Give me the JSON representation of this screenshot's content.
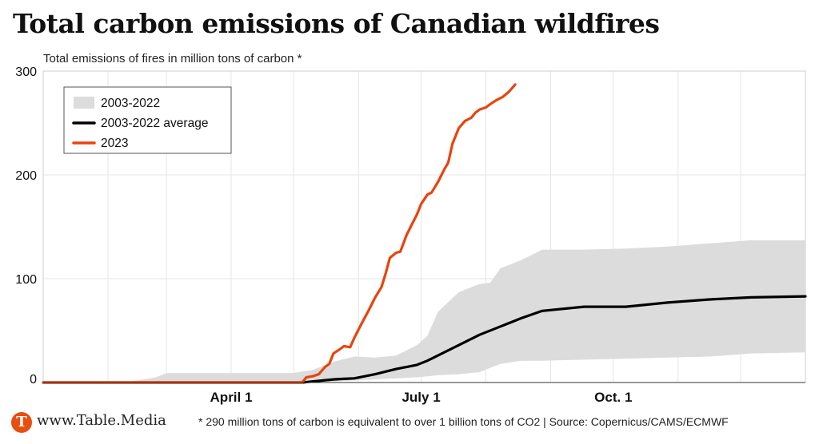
{
  "title": "Total carbon emissions of Canadian wildfires",
  "subtitle": "Total emissions of fires in million tons of carbon *",
  "footer": {
    "brand_mark": "T",
    "brand": "www.Table.Media",
    "note": "* 290 million tons of carbon is equivalent to over 1 billion tons of CO2 | Source: Copernicus/CAMS/ECMWF"
  },
  "colors": {
    "range": "#dcdcdc",
    "average": "#000000",
    "y2023": "#e8440f"
  },
  "chart_data": {
    "type": "line",
    "xlabel": "",
    "ylabel": "",
    "xlim": [
      1,
      366
    ],
    "ylim": [
      0,
      300
    ],
    "yticks": [
      0,
      100,
      200,
      300
    ],
    "xticks": [
      {
        "day": 91,
        "label": "April 1"
      },
      {
        "day": 182,
        "label": "July 1"
      },
      {
        "day": 274,
        "label": "Oct. 1"
      }
    ],
    "grid": true,
    "legend_position": "top-left",
    "legend": [
      "2003-2022",
      "2003-2022 average",
      "2023"
    ],
    "series": [
      {
        "name": "2003-2022",
        "kind": "band",
        "x": [
          1,
          40,
          55,
          60,
          120,
          130,
          140,
          150,
          160,
          170,
          180,
          185,
          190,
          200,
          210,
          215,
          220,
          230,
          240,
          260,
          280,
          300,
          320,
          340,
          366
        ],
        "lower": [
          0,
          0,
          0,
          0,
          0,
          0.5,
          1,
          2,
          3,
          4,
          5,
          6,
          7,
          8,
          10,
          14,
          18,
          21,
          21,
          22,
          23,
          24,
          25,
          28,
          29
        ],
        "upper": [
          0,
          0,
          5,
          9,
          9,
          12,
          20,
          25,
          24,
          26,
          36,
          45,
          68,
          87,
          95,
          96,
          110,
          118,
          128,
          128,
          129,
          131,
          134,
          137,
          137
        ]
      },
      {
        "name": "2003-2022 average",
        "x": [
          1,
          125,
          130,
          140,
          145,
          150,
          160,
          170,
          180,
          185,
          190,
          200,
          210,
          220,
          225,
          230,
          240,
          260,
          280,
          300,
          320,
          340,
          366
        ],
        "y": [
          0,
          0,
          1,
          3,
          3.5,
          4,
          8,
          13,
          17,
          21,
          26,
          36,
          46,
          54,
          58,
          62,
          69,
          73,
          73,
          77,
          80,
          82,
          83
        ]
      },
      {
        "name": "2023",
        "x": [
          1,
          125,
          127,
          130,
          133,
          136,
          138,
          140,
          143,
          145,
          148,
          150,
          153,
          157,
          160,
          163,
          165,
          167,
          170,
          172,
          175,
          178,
          180,
          182,
          185,
          187,
          190,
          193,
          195,
          197,
          200,
          203,
          206,
          208,
          210,
          213,
          215,
          218,
          221,
          224,
          227
        ],
        "y": [
          0,
          0,
          5,
          6,
          8,
          15,
          18,
          28,
          32,
          35,
          34,
          43,
          55,
          70,
          82,
          92,
          105,
          120,
          125,
          126,
          142,
          154,
          162,
          172,
          181,
          183,
          193,
          205,
          212,
          230,
          245,
          252,
          255,
          260,
          263,
          265,
          268,
          272,
          275,
          280,
          287
        ]
      }
    ]
  }
}
